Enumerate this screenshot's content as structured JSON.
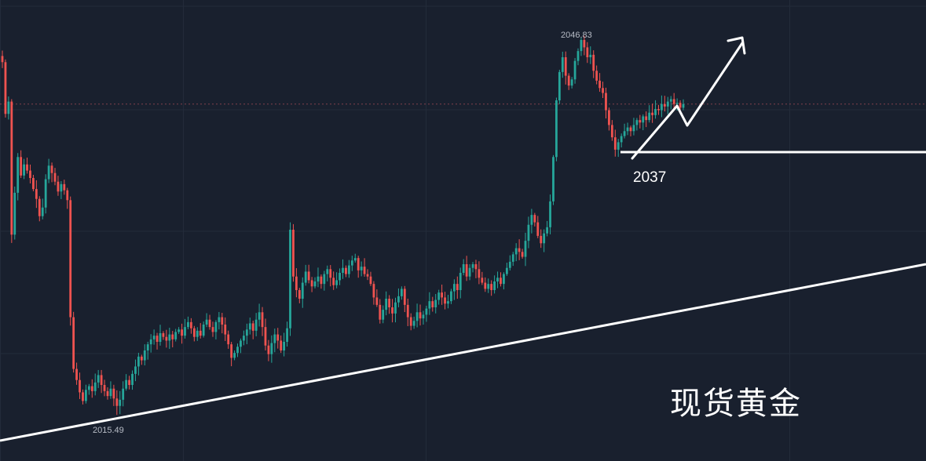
{
  "chart_data": {
    "type": "candlestick",
    "instrument_label": "现货黄金",
    "y_range": [
      2013.2,
      2048.2
    ],
    "grid": true,
    "up_color": "#26a69a",
    "down_color": "#ef5350",
    "background_color": "#19202e",
    "annotation_color": "#ffffff",
    "high_marker": {
      "value": 2046.83,
      "text": "2046.83"
    },
    "low_marker": {
      "value": 2015.49,
      "text": "2015.49"
    },
    "support_level": {
      "value": 2037,
      "text": "2037"
    },
    "current_price_line": 2040.9,
    "closes": [
      2044.3,
      2040.1,
      2041.1,
      2030.3,
      2033.7,
      2036.6,
      2035.1,
      2036.0,
      2035.5,
      2034.9,
      2034.0,
      2033.2,
      2031.8,
      2032.5,
      2034.8,
      2035.9,
      2035.3,
      2034.6,
      2033.8,
      2034.4,
      2033.9,
      2033.1,
      2023.6,
      2019.4,
      2018.5,
      2017.5,
      2016.8,
      2017.7,
      2018.0,
      2017.6,
      2018.3,
      2018.9,
      2018.1,
      2017.6,
      2017.2,
      2017.8,
      2017.0,
      2016.4,
      2016.9,
      2017.8,
      2018.5,
      2018.1,
      2019.0,
      2019.6,
      2020.4,
      2020.1,
      2020.9,
      2021.4,
      2021.8,
      2022.1,
      2021.6,
      2022.3,
      2022.0,
      2021.7,
      2022.2,
      2021.8,
      2022.4,
      2022.6,
      2022.1,
      2022.8,
      2023.2,
      2022.7,
      2022.0,
      2022.5,
      2022.1,
      2023.0,
      2023.4,
      2022.8,
      2022.4,
      2023.2,
      2023.6,
      2023.0,
      2022.2,
      2021.4,
      2020.3,
      2020.7,
      2021.2,
      2021.7,
      2022.1,
      2022.6,
      2023.1,
      2022.5,
      2023.4,
      2024.0,
      2022.8,
      2021.3,
      2020.6,
      2021.5,
      2022.2,
      2021.7,
      2020.9,
      2021.6,
      2022.7,
      2030.7,
      2026.9,
      2025.8,
      2025.1,
      2026.4,
      2027.3,
      2026.6,
      2026.1,
      2026.5,
      2026.9,
      2026.3,
      2027.1,
      2027.5,
      2026.8,
      2026.2,
      2026.6,
      2027.2,
      2027.6,
      2027.1,
      2027.8,
      2028.2,
      2028.4,
      2027.4,
      2027.7,
      2027.1,
      2026.9,
      2026.3,
      2025.2,
      2024.6,
      2023.4,
      2024.2,
      2025.1,
      2024.4,
      2023.9,
      2024.8,
      2025.3,
      2025.9,
      2024.6,
      2023.6,
      2022.9,
      2023.3,
      2024.0,
      2023.5,
      2023.8,
      2024.3,
      2024.9,
      2024.4,
      2025.0,
      2025.6,
      2025.2,
      2024.7,
      2024.9,
      2025.7,
      2026.3,
      2025.8,
      2027.2,
      2027.9,
      2026.9,
      2027.6,
      2027.9,
      2027.5,
      2026.8,
      2026.4,
      2025.9,
      2026.3,
      2025.8,
      2026.5,
      2026.8,
      2026.3,
      2027.1,
      2027.6,
      2028.1,
      2028.7,
      2029.2,
      2028.9,
      2028.5,
      2029.8,
      2031.1,
      2031.9,
      2031.3,
      2030.2,
      2029.6,
      2030.4,
      2030.9,
      2033.0,
      2036.6,
      2041.2,
      2043.5,
      2044.7,
      2043.2,
      2042.4,
      2042.9,
      2044.4,
      2045.2,
      2046.1,
      2045.5,
      2044.7,
      2044.9,
      2043.6,
      2042.8,
      2042.2,
      2041.8,
      2040.4,
      2039.2,
      2038.2,
      2037.2,
      2037.8,
      2038.3,
      2038.7,
      2039.0,
      2038.7,
      2039.2,
      2039.6,
      2039.4,
      2039.9,
      2039.6,
      2040.2,
      2040.0,
      2040.5,
      2040.4,
      2040.9,
      2040.7,
      2041.1,
      2041.3,
      2040.9,
      2041.0,
      2040.6,
      2040.9
    ]
  }
}
